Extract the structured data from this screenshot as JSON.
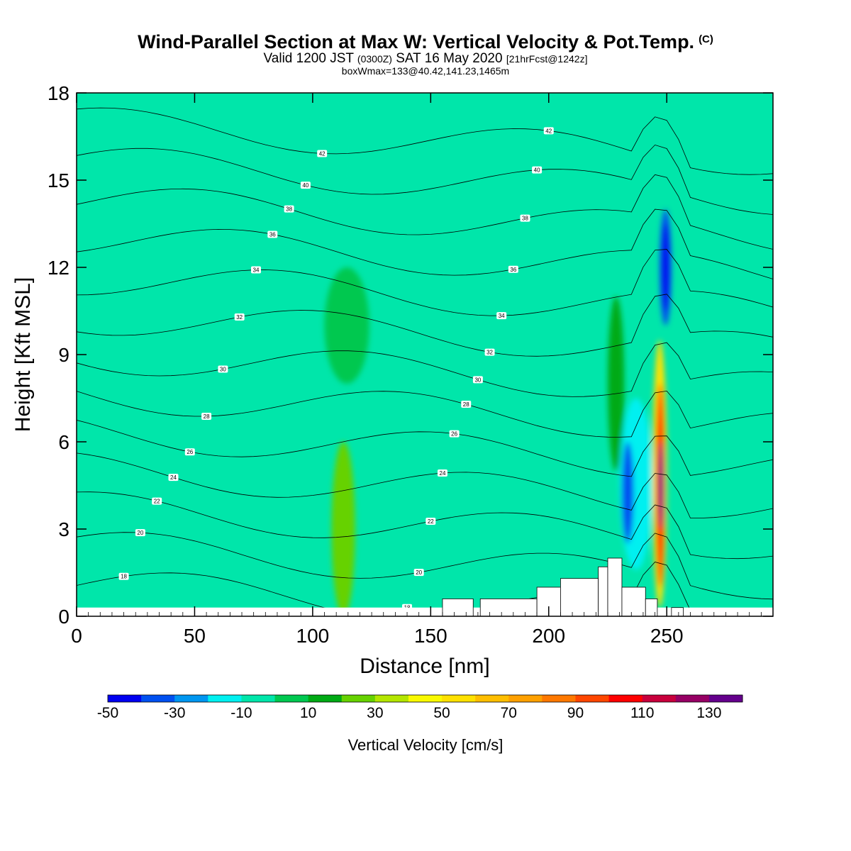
{
  "title": {
    "main": "Wind-Parallel Section at Max W: Vertical Velocity & Pot.Temp.",
    "copyright": "(C)",
    "valid_prefix": "Valid 1200 JST",
    "utc": "(0300Z)",
    "valid_date": "SAT 16 May 2020",
    "forecast": "[21hrFcst@1242z]",
    "boxwmax": "boxWmax=133@40.42,141.23,1465m"
  },
  "chart_data": {
    "type": "heatmap",
    "xlabel": "Distance [nm]",
    "ylabel": "Height [Kft MSL]",
    "xlim": [
      0,
      295
    ],
    "ylim": [
      0,
      18
    ],
    "x_ticks": [
      0,
      50,
      100,
      150,
      200,
      250
    ],
    "y_ticks": [
      0,
      3,
      6,
      9,
      12,
      15,
      18
    ],
    "colorbar": {
      "label": "Vertical Velocity [cm/s]",
      "bounds": [
        -50,
        -40,
        -30,
        -20,
        -10,
        0,
        10,
        20,
        30,
        40,
        50,
        60,
        70,
        80,
        90,
        100,
        110,
        120,
        130,
        140
      ],
      "tick_labels": [
        "-50",
        "-30",
        "-10",
        "10",
        "30",
        "50",
        "70",
        "90",
        "110",
        "130"
      ],
      "colors": [
        "#0000f0",
        "#0050f0",
        "#0096f0",
        "#00f0f0",
        "#00e6aa",
        "#00c850",
        "#00aa14",
        "#66d200",
        "#b4e600",
        "#fafa00",
        "#ffe100",
        "#ffbe00",
        "#ffa000",
        "#ff7800",
        "#ff4600",
        "#ff0000",
        "#c8003c",
        "#960064",
        "#64008c"
      ]
    },
    "regions": [
      {
        "x": [
          108,
          118
        ],
        "y": [
          0,
          6
        ],
        "w": 20
      },
      {
        "x": [
          105,
          124
        ],
        "y": [
          8,
          12
        ],
        "w": 5
      },
      {
        "x": [
          100,
          118
        ],
        "y": [
          14,
          18
        ],
        "w": -5
      },
      {
        "x": [
          225,
          232
        ],
        "y": [
          5,
          11
        ],
        "w": 10
      },
      {
        "x": [
          230,
          244
        ],
        "y": [
          1.6,
          7.5
        ],
        "w": -15
      },
      {
        "x": [
          231,
          236
        ],
        "y": [
          2.5,
          6
        ],
        "w": -40
      },
      {
        "x": [
          244,
          250
        ],
        "y": [
          0.3,
          9.5
        ],
        "w": 55
      },
      {
        "x": [
          245.5,
          249
        ],
        "y": [
          1,
          8
        ],
        "w": 100
      },
      {
        "x": [
          246.5,
          248.5
        ],
        "y": [
          3,
          6
        ],
        "w": 130
      },
      {
        "x": [
          247,
          252
        ],
        "y": [
          10,
          14
        ],
        "w": -35
      },
      {
        "x": [
          248,
          251
        ],
        "y": [
          10.5,
          13.5
        ],
        "w": -45
      }
    ],
    "theta_labels": [
      "42",
      "40",
      "38",
      "36",
      "34",
      "32",
      "30",
      "28",
      "26",
      "24",
      "22",
      "20",
      "18"
    ],
    "terrain_kft": [
      {
        "x": [
          155,
          168
        ],
        "h": 0.6
      },
      {
        "x": [
          171,
          195
        ],
        "h": 0.6
      },
      {
        "x": [
          195,
          205
        ],
        "h": 1.0
      },
      {
        "x": [
          205,
          221
        ],
        "h": 1.3
      },
      {
        "x": [
          221,
          225
        ],
        "h": 1.7
      },
      {
        "x": [
          225,
          231
        ],
        "h": 2.0
      },
      {
        "x": [
          231,
          241
        ],
        "h": 1.0
      },
      {
        "x": [
          241,
          246
        ],
        "h": 0.6
      },
      {
        "x": [
          252,
          257
        ],
        "h": 0.3
      }
    ]
  }
}
